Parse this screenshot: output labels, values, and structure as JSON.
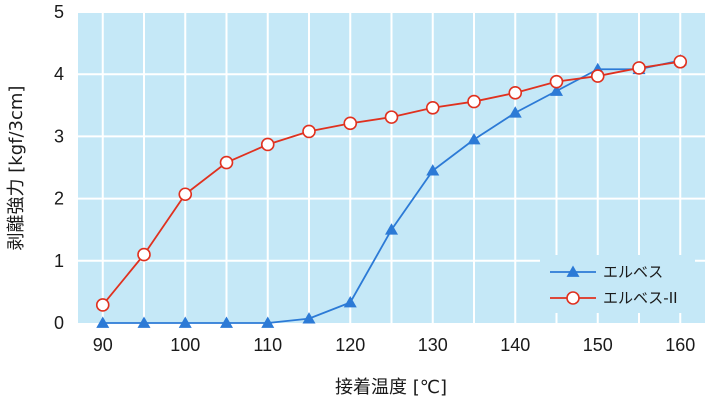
{
  "chart_data": {
    "type": "line",
    "title": "",
    "xlabel": "接着温度 [℃]",
    "ylabel": "剥離強力 [kgf/3cm]",
    "xlim": [
      87,
      163
    ],
    "ylim": [
      0,
      5
    ],
    "x_ticks": [
      "90",
      "100",
      "110",
      "120",
      "130",
      "140",
      "150",
      "160"
    ],
    "x_tick_values": [
      90,
      100,
      110,
      120,
      130,
      140,
      150,
      160
    ],
    "y_ticks": [
      "0",
      "1",
      "2",
      "3",
      "4",
      "5"
    ],
    "y_tick_values": [
      0,
      1,
      2,
      3,
      4,
      5
    ],
    "grid": true,
    "legend_position": "lower-right",
    "background_color": "#c5e8f7",
    "grid_color": "#ffffff",
    "series": [
      {
        "name": "エルベス",
        "color": "#2c7ad6",
        "marker": "triangle",
        "x": [
          90,
          95,
          100,
          105,
          110,
          115,
          120,
          125,
          130,
          135,
          140,
          145,
          150,
          155,
          160
        ],
        "y": [
          0,
          0,
          0,
          0,
          0,
          0.07,
          0.33,
          1.5,
          2.45,
          2.95,
          3.38,
          3.73,
          4.08,
          4.08,
          4.22
        ]
      },
      {
        "name": "エルベス-II",
        "color": "#e0311f",
        "marker": "circle",
        "x": [
          90,
          95,
          100,
          105,
          110,
          115,
          120,
          125,
          130,
          135,
          140,
          145,
          150,
          155,
          160
        ],
        "y": [
          0.29,
          1.1,
          2.07,
          2.58,
          2.87,
          3.08,
          3.21,
          3.31,
          3.46,
          3.56,
          3.7,
          3.88,
          3.97,
          4.1,
          4.2
        ]
      }
    ]
  }
}
